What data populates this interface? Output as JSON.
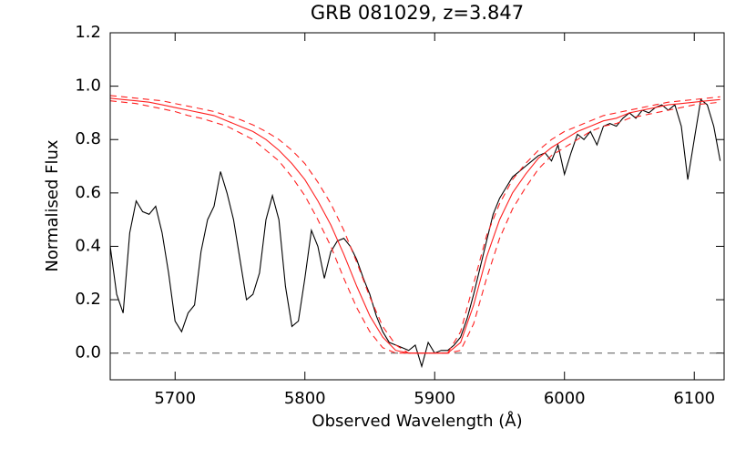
{
  "chart_data": {
    "type": "line",
    "title": "GRB 081029, z=3.847",
    "xlabel": "Observed Wavelength (Å)",
    "ylabel": "Normalised Flux",
    "xlim": [
      5650,
      6123
    ],
    "ylim": [
      -0.1,
      1.2
    ],
    "xticks": [
      5700,
      5800,
      5900,
      6000,
      6100
    ],
    "yticks": [
      {
        "value": 0,
        "label": "0.0"
      },
      0.2,
      0.4,
      0.6,
      0.8,
      {
        "value": 1,
        "label": "1.0"
      },
      1.2
    ],
    "hline": 0,
    "series": [
      {
        "color": "#000000",
        "style": "solid",
        "x": [
          5650,
          5655,
          5660,
          5665,
          5670,
          5675,
          5680,
          5685,
          5690,
          5695,
          5700,
          5705,
          5710,
          5715,
          5720,
          5725,
          5730,
          5735,
          5740,
          5745,
          5750,
          5755,
          5760,
          5765,
          5770,
          5775,
          5780,
          5785,
          5790,
          5795,
          5800,
          5805,
          5810,
          5815,
          5820,
          5825,
          5830,
          5835,
          5840,
          5845,
          5850,
          5855,
          5860,
          5865,
          5870,
          5875,
          5880,
          5885,
          5890,
          5895,
          5900,
          5905,
          5910,
          5915,
          5920,
          5925,
          5930,
          5935,
          5940,
          5945,
          5950,
          5955,
          5960,
          5965,
          5970,
          5975,
          5980,
          5985,
          5990,
          5995,
          6000,
          6005,
          6010,
          6015,
          6020,
          6025,
          6030,
          6035,
          6040,
          6045,
          6050,
          6055,
          6060,
          6065,
          6070,
          6075,
          6080,
          6085,
          6090,
          6095,
          6100,
          6105,
          6110,
          6115,
          6120
        ],
        "values": [
          0.4,
          0.22,
          0.15,
          0.45,
          0.57,
          0.53,
          0.52,
          0.55,
          0.45,
          0.3,
          0.12,
          0.08,
          0.15,
          0.18,
          0.38,
          0.5,
          0.55,
          0.68,
          0.6,
          0.5,
          0.35,
          0.2,
          0.22,
          0.3,
          0.5,
          0.59,
          0.5,
          0.25,
          0.1,
          0.12,
          0.28,
          0.46,
          0.4,
          0.28,
          0.38,
          0.42,
          0.43,
          0.4,
          0.35,
          0.28,
          0.22,
          0.14,
          0.08,
          0.04,
          0.03,
          0.02,
          0.01,
          0.03,
          -0.05,
          0.04,
          0.0,
          0.01,
          0.01,
          0.03,
          0.06,
          0.13,
          0.22,
          0.32,
          0.42,
          0.52,
          0.58,
          0.62,
          0.66,
          0.68,
          0.7,
          0.72,
          0.74,
          0.75,
          0.72,
          0.78,
          0.67,
          0.75,
          0.82,
          0.8,
          0.83,
          0.78,
          0.85,
          0.86,
          0.85,
          0.88,
          0.9,
          0.88,
          0.91,
          0.9,
          0.92,
          0.93,
          0.91,
          0.93,
          0.85,
          0.65,
          0.8,
          0.95,
          0.93,
          0.85,
          0.72
        ]
      },
      {
        "color": "#ff2020",
        "style": "solid",
        "x": [
          5650,
          5660,
          5670,
          5680,
          5690,
          5700,
          5710,
          5720,
          5730,
          5740,
          5750,
          5760,
          5770,
          5780,
          5790,
          5800,
          5810,
          5820,
          5830,
          5840,
          5850,
          5860,
          5870,
          5880,
          5890,
          5900,
          5910,
          5920,
          5930,
          5940,
          5950,
          5960,
          5970,
          5980,
          5990,
          6000,
          6010,
          6020,
          6030,
          6040,
          6050,
          6060,
          6070,
          6080,
          6090,
          6100,
          6110,
          6120
        ],
        "values": [
          0.955,
          0.95,
          0.945,
          0.94,
          0.93,
          0.92,
          0.91,
          0.9,
          0.89,
          0.87,
          0.85,
          0.83,
          0.8,
          0.76,
          0.71,
          0.65,
          0.57,
          0.48,
          0.37,
          0.25,
          0.14,
          0.06,
          0.01,
          0.0,
          0.0,
          0.0,
          0.0,
          0.04,
          0.18,
          0.36,
          0.5,
          0.6,
          0.67,
          0.73,
          0.77,
          0.8,
          0.83,
          0.85,
          0.87,
          0.88,
          0.9,
          0.91,
          0.92,
          0.93,
          0.935,
          0.94,
          0.945,
          0.95
        ]
      },
      {
        "color": "#ff2020",
        "style": "dashed",
        "x": [
          5650,
          5660,
          5670,
          5680,
          5690,
          5700,
          5710,
          5720,
          5730,
          5740,
          5750,
          5760,
          5770,
          5780,
          5790,
          5800,
          5810,
          5820,
          5830,
          5840,
          5850,
          5860,
          5870,
          5880,
          5890,
          5900,
          5910,
          5920,
          5930,
          5940,
          5950,
          5960,
          5970,
          5980,
          5990,
          6000,
          6010,
          6020,
          6030,
          6040,
          6050,
          6060,
          6070,
          6080,
          6090,
          6100,
          6110,
          6120
        ],
        "values": [
          0.965,
          0.96,
          0.955,
          0.95,
          0.945,
          0.935,
          0.925,
          0.915,
          0.905,
          0.89,
          0.875,
          0.855,
          0.83,
          0.8,
          0.76,
          0.71,
          0.64,
          0.56,
          0.46,
          0.34,
          0.21,
          0.1,
          0.03,
          0.0,
          0.0,
          0.0,
          0.0,
          0.08,
          0.26,
          0.44,
          0.56,
          0.65,
          0.71,
          0.76,
          0.8,
          0.83,
          0.85,
          0.87,
          0.89,
          0.9,
          0.91,
          0.92,
          0.93,
          0.94,
          0.945,
          0.95,
          0.955,
          0.96
        ]
      },
      {
        "color": "#ff2020",
        "style": "dashed",
        "x": [
          5650,
          5660,
          5670,
          5680,
          5690,
          5700,
          5710,
          5720,
          5730,
          5740,
          5750,
          5760,
          5770,
          5780,
          5790,
          5800,
          5810,
          5820,
          5830,
          5840,
          5850,
          5860,
          5870,
          5880,
          5890,
          5900,
          5910,
          5920,
          5930,
          5940,
          5950,
          5960,
          5970,
          5980,
          5990,
          6000,
          6010,
          6020,
          6030,
          6040,
          6050,
          6060,
          6070,
          6080,
          6090,
          6100,
          6110,
          6120
        ],
        "values": [
          0.945,
          0.94,
          0.935,
          0.925,
          0.915,
          0.905,
          0.89,
          0.88,
          0.865,
          0.85,
          0.825,
          0.8,
          0.76,
          0.72,
          0.66,
          0.59,
          0.5,
          0.4,
          0.28,
          0.17,
          0.08,
          0.02,
          0.0,
          0.0,
          0.0,
          0.0,
          0.0,
          0.01,
          0.11,
          0.28,
          0.43,
          0.54,
          0.62,
          0.69,
          0.74,
          0.77,
          0.8,
          0.83,
          0.85,
          0.86,
          0.88,
          0.89,
          0.9,
          0.91,
          0.92,
          0.93,
          0.935,
          0.94
        ]
      }
    ]
  }
}
